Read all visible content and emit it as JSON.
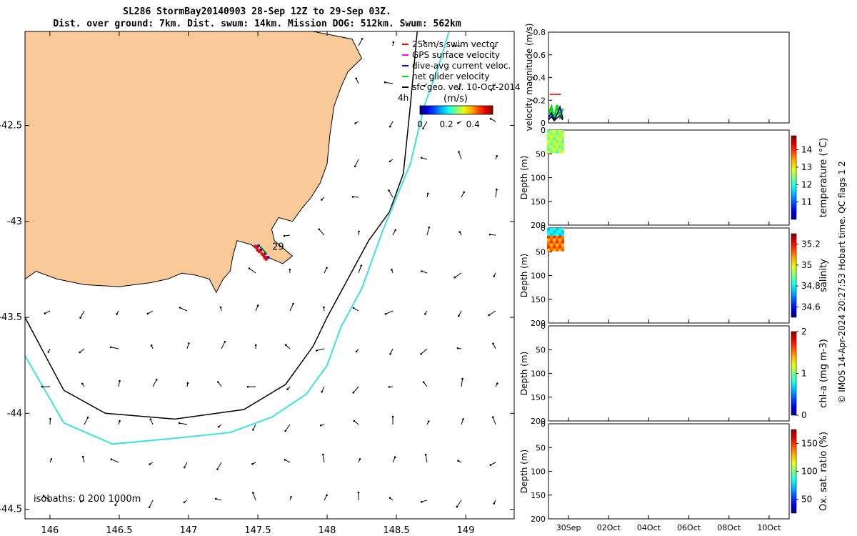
{
  "header": {
    "title_line1": "SL286 StormBay20140903 28-Sep 12Z to 29-Sep 03Z.",
    "title_line2": "Dist. over ground: 7km. Dist. swum: 14km. Mission DOG: 512km. Swum: 562km"
  },
  "map": {
    "x_ticks": [
      "146",
      "146.5",
      "147",
      "147.5",
      "148",
      "148.5",
      "149"
    ],
    "y_ticks": [
      "-42.5",
      "-43",
      "-43.5",
      "-44",
      "-44.5"
    ],
    "legend": [
      {
        "label": "25cm/s swim vector",
        "color": "#ff0000"
      },
      {
        "label": "GPS surface velocity",
        "color": "#ff00ff"
      },
      {
        "label": "dive-avg current veloc.",
        "color": "#0000ff"
      },
      {
        "label": "net glider velocity",
        "color": "#00dd00"
      },
      {
        "label": "sfc geo. vel. 10-Oct-2014",
        "color": "#000000"
      }
    ],
    "colorbar": {
      "unit": "(m/s)",
      "ticks": [
        "0",
        "0.2",
        "0.4"
      ],
      "range": [
        0,
        0.55
      ]
    },
    "scale_label": "4h",
    "day_label": "29",
    "isobaths_label": "isobaths: 0   200  1000m",
    "colors": {
      "land": "#fac998",
      "iso200": "#000000",
      "iso1000": "#40e0e0"
    }
  },
  "panels": {
    "x_ticks": [
      "30Sep",
      "02Oct",
      "04Oct",
      "06Oct",
      "08Oct",
      "10Oct"
    ],
    "velocity": {
      "ylabel": "velocity magnitude (m/s)",
      "y_ticks": [
        "0",
        "0.2",
        "0.4",
        "0.6",
        "0.8"
      ]
    },
    "depth_ticks": [
      "0",
      "50",
      "100",
      "150",
      "200"
    ],
    "depth_ylabel": "Depth (m)",
    "profiles": [
      {
        "clabel": "temperature (°C)",
        "ticks": [
          "11",
          "12",
          "13",
          "14"
        ],
        "crange": [
          10,
          14.8
        ]
      },
      {
        "clabel": "salinity",
        "ticks": [
          "34.6",
          "34.8",
          "35",
          "35.2"
        ],
        "crange": [
          34.5,
          35.3
        ]
      },
      {
        "clabel": "chl-a (mg m-3)",
        "ticks": [
          "0",
          "1",
          "2"
        ],
        "crange": [
          0,
          2
        ]
      },
      {
        "clabel": "Ox. sat. ratio (%)",
        "ticks": [
          "50",
          "100",
          "150"
        ],
        "crange": [
          25,
          175
        ]
      }
    ]
  },
  "credit": "© IMOS 14-Apr-2024 20:27:53 Hobart time. QC flags 1  2",
  "chart_data": [
    {
      "type": "scatter",
      "title": "SL286 StormBay20140903 28-Sep 12Z to 29-Sep 03Z.",
      "xlim": [
        145.82,
        149.35
      ],
      "ylim": [
        -44.55,
        -42.01
      ],
      "glider_track": [
        [
          147.49,
          -43.13
        ],
        [
          147.51,
          -43.15
        ],
        [
          147.54,
          -43.17
        ],
        [
          147.56,
          -43.19
        ]
      ],
      "land_outline": [
        [
          145.82,
          -42.01
        ],
        [
          147.02,
          -42.01
        ],
        [
          147.5,
          -42.01
        ],
        [
          147.9,
          -42.01
        ],
        [
          148.18,
          -42.05
        ],
        [
          148.25,
          -42.15
        ],
        [
          148.15,
          -42.22
        ],
        [
          148.1,
          -42.3
        ],
        [
          148.05,
          -42.4
        ],
        [
          148.02,
          -42.55
        ],
        [
          148.0,
          -42.7
        ],
        [
          147.95,
          -42.8
        ],
        [
          147.88,
          -42.88
        ],
        [
          147.82,
          -42.93
        ],
        [
          147.75,
          -43.0
        ],
        [
          147.65,
          -42.98
        ],
        [
          147.6,
          -43.04
        ],
        [
          147.62,
          -43.1
        ],
        [
          147.7,
          -43.15
        ],
        [
          147.75,
          -43.18
        ],
        [
          147.68,
          -43.22
        ],
        [
          147.55,
          -43.18
        ],
        [
          147.45,
          -43.12
        ],
        [
          147.35,
          -43.1
        ],
        [
          147.32,
          -43.18
        ],
        [
          147.3,
          -43.26
        ],
        [
          147.25,
          -43.3
        ],
        [
          147.2,
          -43.37
        ],
        [
          147.15,
          -43.3
        ],
        [
          147.05,
          -43.28
        ],
        [
          146.95,
          -43.27
        ],
        [
          146.85,
          -43.3
        ],
        [
          146.72,
          -43.32
        ],
        [
          146.5,
          -43.34
        ],
        [
          146.25,
          -43.33
        ],
        [
          146.05,
          -43.3
        ],
        [
          145.9,
          -43.26
        ],
        [
          145.82,
          -43.3
        ]
      ],
      "isobath_200m": [
        [
          148.65,
          -42.01
        ],
        [
          148.6,
          -42.4
        ],
        [
          148.55,
          -42.75
        ],
        [
          148.45,
          -42.95
        ],
        [
          148.3,
          -43.1
        ],
        [
          148.15,
          -43.3
        ],
        [
          148.0,
          -43.5
        ],
        [
          147.9,
          -43.65
        ],
        [
          147.7,
          -43.85
        ],
        [
          147.4,
          -43.98
        ],
        [
          146.9,
          -44.03
        ],
        [
          146.4,
          -44.0
        ],
        [
          146.1,
          -43.88
        ],
        [
          145.82,
          -43.5
        ]
      ],
      "isobath_1000m": [
        [
          148.88,
          -42.01
        ],
        [
          148.8,
          -42.2
        ],
        [
          148.7,
          -42.4
        ],
        [
          148.6,
          -42.7
        ],
        [
          148.4,
          -43.05
        ],
        [
          148.25,
          -43.35
        ],
        [
          148.1,
          -43.55
        ],
        [
          148.0,
          -43.75
        ],
        [
          147.85,
          -43.9
        ],
        [
          147.6,
          -44.02
        ],
        [
          147.3,
          -44.1
        ],
        [
          146.9,
          -44.13
        ],
        [
          146.45,
          -44.16
        ],
        [
          146.1,
          -44.05
        ],
        [
          145.82,
          -43.7
        ]
      ]
    },
    {
      "type": "scatter",
      "ylabel": "velocity magnitude (m/s)",
      "ylim": [
        0,
        0.8
      ],
      "xlim": [
        "29Sep",
        "11Oct"
      ],
      "series": [
        {
          "name": "25cm/s swim vector",
          "x": [
            "29Sep"
          ],
          "y": [
            0.25
          ]
        },
        {
          "name": "net glider velocity",
          "x": [
            "29Sep"
          ],
          "y": [
            0.1
          ]
        },
        {
          "name": "dive-avg current veloc.",
          "x": [
            "29Sep"
          ],
          "y": [
            0.06
          ]
        }
      ]
    },
    {
      "type": "heatmap",
      "ylabel": "Depth (m)",
      "colorbar_label": "temperature (°C)",
      "ylim": [
        200,
        0
      ],
      "x": [
        "29Sep"
      ],
      "depth_range": [
        0,
        45
      ],
      "value_approx": 12.8
    },
    {
      "type": "heatmap",
      "ylabel": "Depth (m)",
      "colorbar_label": "salinity",
      "ylim": [
        200,
        0
      ],
      "x": [
        "29Sep"
      ],
      "depth_range": [
        0,
        45
      ],
      "value_approx": [
        34.8,
        35.1
      ]
    },
    {
      "type": "heatmap",
      "ylabel": "Depth (m)",
      "colorbar_label": "chl-a (mg m-3)",
      "ylim": [
        200,
        0
      ],
      "x": [],
      "values": []
    },
    {
      "type": "heatmap",
      "ylabel": "Depth (m)",
      "colorbar_label": "Ox. sat. ratio (%)",
      "ylim": [
        200,
        0
      ],
      "x": [],
      "values": []
    }
  ]
}
